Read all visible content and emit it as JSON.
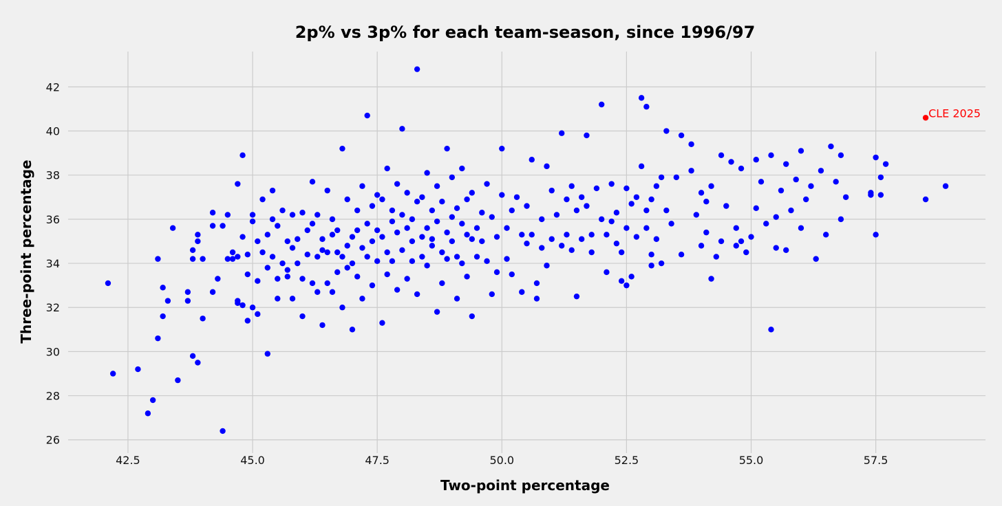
{
  "chart_data": {
    "type": "scatter",
    "title": "2p% vs 3p% for each team-season, since 1996/97",
    "xlabel": "Two-point percentage",
    "ylabel": "Three-point percentage",
    "xlim": [
      41.3,
      59.7
    ],
    "ylim": [
      25.4,
      43.6
    ],
    "xticks": [
      "42.5",
      "45.0",
      "47.5",
      "50.0",
      "52.5",
      "55.0",
      "57.5"
    ],
    "yticks": [
      "26",
      "28",
      "30",
      "32",
      "34",
      "36",
      "38",
      "40",
      "42"
    ],
    "grid": true,
    "colors": {
      "points": "#0000ff",
      "highlight": "#ff0000"
    },
    "highlight": {
      "label": "CLE 2025",
      "x": 58.5,
      "y": 40.6
    },
    "points": [
      [
        42.1,
        33.1
      ],
      [
        42.2,
        29.0
      ],
      [
        42.7,
        29.2
      ],
      [
        42.9,
        27.2
      ],
      [
        43.0,
        27.8
      ],
      [
        43.1,
        30.6
      ],
      [
        43.1,
        34.2
      ],
      [
        43.2,
        31.6
      ],
      [
        43.2,
        32.9
      ],
      [
        43.3,
        32.3
      ],
      [
        43.4,
        35.6
      ],
      [
        43.5,
        28.7
      ],
      [
        43.7,
        32.3
      ],
      [
        43.7,
        32.7
      ],
      [
        43.8,
        34.2
      ],
      [
        43.8,
        29.8
      ],
      [
        43.8,
        34.6
      ],
      [
        43.9,
        35.0
      ],
      [
        43.9,
        35.3
      ],
      [
        43.9,
        29.5
      ],
      [
        44.0,
        31.5
      ],
      [
        44.0,
        34.2
      ],
      [
        44.2,
        36.3
      ],
      [
        44.2,
        35.7
      ],
      [
        44.2,
        32.7
      ],
      [
        44.3,
        33.3
      ],
      [
        44.4,
        35.7
      ],
      [
        44.4,
        26.4
      ],
      [
        44.5,
        36.2
      ],
      [
        44.5,
        34.2
      ],
      [
        44.6,
        34.5
      ],
      [
        44.6,
        34.2
      ],
      [
        44.7,
        34.3
      ],
      [
        44.7,
        32.3
      ],
      [
        44.7,
        32.2
      ],
      [
        44.7,
        37.6
      ],
      [
        44.8,
        35.2
      ],
      [
        44.8,
        32.1
      ],
      [
        44.8,
        38.9
      ],
      [
        44.9,
        33.5
      ],
      [
        44.9,
        31.4
      ],
      [
        44.9,
        34.4
      ],
      [
        45.0,
        35.9
      ],
      [
        45.0,
        32.0
      ],
      [
        45.0,
        36.2
      ],
      [
        45.1,
        33.2
      ],
      [
        45.1,
        31.7
      ],
      [
        45.1,
        35.0
      ],
      [
        45.2,
        36.9
      ],
      [
        45.2,
        34.5
      ],
      [
        45.3,
        29.9
      ],
      [
        45.3,
        33.8
      ],
      [
        45.3,
        35.3
      ],
      [
        45.4,
        36.0
      ],
      [
        45.4,
        34.3
      ],
      [
        45.4,
        37.3
      ],
      [
        45.5,
        33.3
      ],
      [
        45.5,
        32.4
      ],
      [
        45.5,
        35.7
      ],
      [
        45.6,
        34.0
      ],
      [
        45.6,
        36.4
      ],
      [
        45.7,
        35.0
      ],
      [
        45.7,
        33.7
      ],
      [
        45.7,
        33.4
      ],
      [
        45.8,
        34.7
      ],
      [
        45.8,
        32.4
      ],
      [
        45.8,
        36.2
      ],
      [
        45.9,
        35.1
      ],
      [
        45.9,
        34.0
      ],
      [
        46.0,
        33.3
      ],
      [
        46.0,
        31.6
      ],
      [
        46.0,
        36.3
      ],
      [
        46.1,
        34.4
      ],
      [
        46.1,
        35.5
      ],
      [
        46.2,
        33.1
      ],
      [
        46.2,
        35.8
      ],
      [
        46.2,
        37.7
      ],
      [
        46.3,
        34.3
      ],
      [
        46.3,
        32.7
      ],
      [
        46.3,
        36.2
      ],
      [
        46.4,
        34.6
      ],
      [
        46.4,
        31.2
      ],
      [
        46.4,
        35.1
      ],
      [
        46.5,
        34.5
      ],
      [
        46.5,
        33.1
      ],
      [
        46.5,
        37.3
      ],
      [
        46.6,
        35.3
      ],
      [
        46.6,
        32.7
      ],
      [
        46.6,
        36.0
      ],
      [
        46.7,
        34.5
      ],
      [
        46.7,
        33.6
      ],
      [
        46.7,
        35.5
      ],
      [
        46.8,
        34.3
      ],
      [
        46.8,
        39.2
      ],
      [
        46.8,
        32.0
      ],
      [
        46.9,
        34.8
      ],
      [
        46.9,
        36.9
      ],
      [
        46.9,
        33.8
      ],
      [
        47.0,
        35.2
      ],
      [
        47.0,
        34.0
      ],
      [
        47.0,
        31.0
      ],
      [
        47.1,
        35.5
      ],
      [
        47.1,
        33.4
      ],
      [
        47.1,
        36.4
      ],
      [
        47.2,
        34.7
      ],
      [
        47.2,
        32.4
      ],
      [
        47.2,
        37.5
      ],
      [
        47.3,
        35.8
      ],
      [
        47.3,
        34.3
      ],
      [
        47.3,
        40.7
      ],
      [
        47.4,
        35.0
      ],
      [
        47.4,
        33.0
      ],
      [
        47.4,
        36.6
      ],
      [
        47.5,
        35.5
      ],
      [
        47.5,
        34.1
      ],
      [
        47.5,
        37.1
      ],
      [
        47.6,
        35.2
      ],
      [
        47.6,
        31.3
      ],
      [
        47.6,
        36.9
      ],
      [
        47.7,
        34.5
      ],
      [
        47.7,
        33.5
      ],
      [
        47.7,
        38.3
      ],
      [
        47.8,
        35.9
      ],
      [
        47.8,
        34.1
      ],
      [
        47.8,
        36.4
      ],
      [
        47.9,
        35.4
      ],
      [
        47.9,
        32.8
      ],
      [
        47.9,
        37.6
      ],
      [
        48.0,
        36.2
      ],
      [
        48.0,
        34.6
      ],
      [
        48.0,
        40.1
      ],
      [
        48.1,
        35.6
      ],
      [
        48.1,
        33.3
      ],
      [
        48.1,
        37.2
      ],
      [
        48.2,
        35.0
      ],
      [
        48.2,
        34.1
      ],
      [
        48.2,
        36.0
      ],
      [
        48.3,
        36.8
      ],
      [
        48.3,
        32.6
      ],
      [
        48.3,
        42.8
      ],
      [
        48.4,
        35.2
      ],
      [
        48.4,
        34.3
      ],
      [
        48.4,
        37.0
      ],
      [
        48.5,
        35.6
      ],
      [
        48.5,
        33.9
      ],
      [
        48.5,
        38.1
      ],
      [
        48.6,
        36.4
      ],
      [
        48.6,
        34.8
      ],
      [
        48.6,
        35.1
      ],
      [
        48.7,
        37.5
      ],
      [
        48.7,
        31.8
      ],
      [
        48.7,
        35.9
      ],
      [
        48.8,
        34.5
      ],
      [
        48.8,
        33.1
      ],
      [
        48.8,
        36.8
      ],
      [
        48.9,
        35.4
      ],
      [
        48.9,
        39.2
      ],
      [
        48.9,
        34.2
      ],
      [
        49.0,
        36.1
      ],
      [
        49.0,
        35.0
      ],
      [
        49.0,
        37.9
      ],
      [
        49.1,
        34.3
      ],
      [
        49.1,
        32.4
      ],
      [
        49.1,
        36.5
      ],
      [
        49.2,
        35.8
      ],
      [
        49.2,
        34.0
      ],
      [
        49.2,
        38.3
      ],
      [
        49.3,
        35.3
      ],
      [
        49.3,
        33.4
      ],
      [
        49.3,
        36.9
      ],
      [
        49.4,
        35.1
      ],
      [
        49.4,
        31.6
      ],
      [
        49.4,
        37.2
      ],
      [
        49.5,
        35.6
      ],
      [
        49.5,
        34.3
      ],
      [
        49.6,
        36.3
      ],
      [
        49.6,
        35.0
      ],
      [
        49.7,
        37.6
      ],
      [
        49.7,
        34.1
      ],
      [
        49.8,
        36.1
      ],
      [
        49.8,
        32.6
      ],
      [
        49.9,
        35.2
      ],
      [
        49.9,
        33.6
      ],
      [
        50.0,
        37.1
      ],
      [
        50.0,
        39.2
      ],
      [
        50.1,
        34.2
      ],
      [
        50.1,
        35.6
      ],
      [
        50.2,
        36.4
      ],
      [
        50.2,
        33.5
      ],
      [
        50.3,
        37.0
      ],
      [
        50.4,
        35.3
      ],
      [
        50.4,
        32.7
      ],
      [
        50.5,
        36.6
      ],
      [
        50.5,
        34.9
      ],
      [
        50.6,
        38.7
      ],
      [
        50.6,
        35.3
      ],
      [
        50.7,
        33.1
      ],
      [
        50.7,
        32.4
      ],
      [
        50.8,
        36.0
      ],
      [
        50.8,
        34.7
      ],
      [
        50.9,
        38.4
      ],
      [
        50.9,
        33.9
      ],
      [
        51.0,
        35.1
      ],
      [
        51.0,
        37.3
      ],
      [
        51.1,
        36.2
      ],
      [
        51.2,
        34.8
      ],
      [
        51.2,
        39.9
      ],
      [
        51.3,
        36.9
      ],
      [
        51.3,
        35.3
      ],
      [
        51.4,
        37.5
      ],
      [
        51.4,
        34.6
      ],
      [
        51.5,
        36.4
      ],
      [
        51.5,
        32.5
      ],
      [
        51.6,
        37.0
      ],
      [
        51.6,
        35.1
      ],
      [
        51.7,
        39.8
      ],
      [
        51.7,
        36.6
      ],
      [
        51.8,
        35.3
      ],
      [
        51.8,
        34.5
      ],
      [
        51.9,
        37.4
      ],
      [
        52.0,
        36.0
      ],
      [
        52.0,
        41.2
      ],
      [
        52.1,
        35.3
      ],
      [
        52.1,
        33.6
      ],
      [
        52.2,
        37.6
      ],
      [
        52.2,
        35.9
      ],
      [
        52.3,
        34.9
      ],
      [
        52.3,
        36.3
      ],
      [
        52.4,
        33.2
      ],
      [
        52.4,
        34.5
      ],
      [
        52.5,
        37.4
      ],
      [
        52.5,
        35.6
      ],
      [
        52.5,
        33.0
      ],
      [
        52.6,
        36.7
      ],
      [
        52.6,
        33.4
      ],
      [
        52.7,
        37.0
      ],
      [
        52.7,
        35.2
      ],
      [
        52.8,
        38.4
      ],
      [
        52.8,
        41.5
      ],
      [
        52.9,
        36.4
      ],
      [
        52.9,
        35.6
      ],
      [
        52.9,
        41.1
      ],
      [
        53.0,
        33.9
      ],
      [
        53.0,
        36.9
      ],
      [
        53.0,
        34.4
      ],
      [
        53.1,
        37.5
      ],
      [
        53.1,
        35.1
      ],
      [
        53.2,
        37.9
      ],
      [
        53.2,
        34.0
      ],
      [
        53.3,
        36.4
      ],
      [
        53.3,
        40.0
      ],
      [
        53.4,
        35.8
      ],
      [
        53.5,
        37.9
      ],
      [
        53.6,
        39.8
      ],
      [
        53.6,
        34.4
      ],
      [
        53.8,
        38.2
      ],
      [
        53.8,
        39.4
      ],
      [
        53.9,
        36.2
      ],
      [
        54.0,
        34.8
      ],
      [
        54.0,
        37.2
      ],
      [
        54.1,
        35.4
      ],
      [
        54.1,
        36.8
      ],
      [
        54.2,
        33.3
      ],
      [
        54.2,
        37.5
      ],
      [
        54.3,
        34.3
      ],
      [
        54.4,
        38.9
      ],
      [
        54.4,
        35.0
      ],
      [
        54.5,
        36.6
      ],
      [
        54.6,
        38.6
      ],
      [
        54.7,
        35.6
      ],
      [
        54.7,
        34.8
      ],
      [
        54.8,
        38.3
      ],
      [
        54.8,
        35.0
      ],
      [
        54.9,
        34.5
      ],
      [
        55.0,
        35.2
      ],
      [
        55.1,
        36.5
      ],
      [
        55.1,
        38.7
      ],
      [
        55.2,
        37.7
      ],
      [
        55.3,
        35.8
      ],
      [
        55.4,
        31.0
      ],
      [
        55.4,
        38.9
      ],
      [
        55.5,
        36.1
      ],
      [
        55.5,
        34.7
      ],
      [
        55.6,
        37.3
      ],
      [
        55.7,
        38.5
      ],
      [
        55.7,
        34.6
      ],
      [
        55.8,
        36.4
      ],
      [
        55.9,
        37.8
      ],
      [
        56.0,
        35.6
      ],
      [
        56.0,
        39.1
      ],
      [
        56.1,
        36.9
      ],
      [
        56.2,
        37.5
      ],
      [
        56.3,
        34.2
      ],
      [
        56.4,
        38.2
      ],
      [
        56.5,
        35.3
      ],
      [
        56.6,
        39.3
      ],
      [
        56.7,
        37.7
      ],
      [
        56.8,
        38.9
      ],
      [
        56.8,
        36.0
      ],
      [
        56.9,
        37.0
      ],
      [
        57.4,
        37.2
      ],
      [
        57.4,
        37.1
      ],
      [
        57.5,
        35.3
      ],
      [
        57.5,
        38.8
      ],
      [
        57.6,
        37.9
      ],
      [
        57.6,
        37.1
      ],
      [
        57.7,
        38.5
      ],
      [
        58.5,
        36.9
      ],
      [
        58.9,
        37.5
      ]
    ]
  }
}
